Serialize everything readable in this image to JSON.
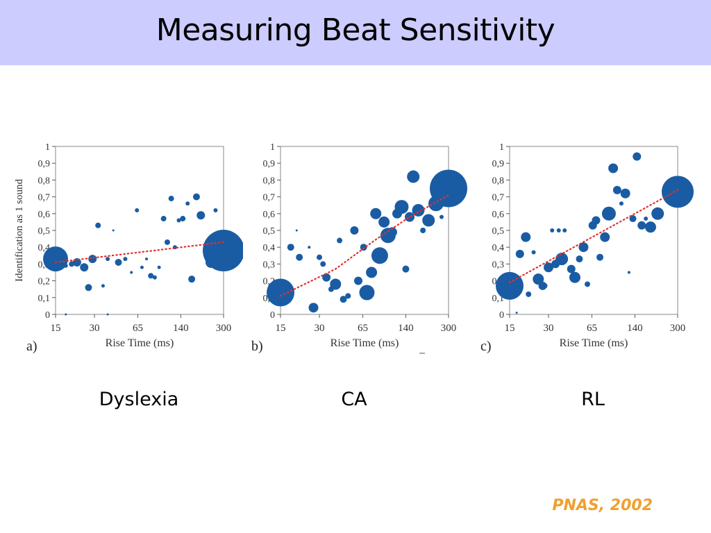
{
  "slide": {
    "title": "Measuring Beat Sensitivity",
    "citation": "PNAS, 2002",
    "colors": {
      "title_bar": "#ccccff",
      "bubble": "#1a5ca3",
      "trend": "#e03030",
      "citation": "#f0a030"
    }
  },
  "chart_data": [
    {
      "type": "scatter",
      "panel_label": "a)",
      "caption": "Dyslexia",
      "xlabel": "Rise Time (ms)",
      "ylabel": "Identification as 1 sound",
      "xticks": [
        "15",
        "30",
        "65",
        "140",
        "300"
      ],
      "yticks": [
        "0",
        "0,1",
        "0,2",
        "0,3",
        "0,4",
        "0,5",
        "0,6",
        "0,7",
        "0,8",
        "0,9",
        "1"
      ],
      "ylim": [
        0,
        1
      ],
      "x_scale": "log",
      "trend": [
        [
          15,
          0.31
        ],
        [
          300,
          0.43
        ]
      ],
      "points": [
        {
          "x": 15,
          "y": 0.33,
          "s": 18
        },
        {
          "x": 18,
          "y": 0.29,
          "s": 3
        },
        {
          "x": 20,
          "y": 0.3,
          "s": 4
        },
        {
          "x": 22,
          "y": 0.31,
          "s": 6
        },
        {
          "x": 25,
          "y": 0.28,
          "s": 6
        },
        {
          "x": 27,
          "y": 0.16,
          "s": 5
        },
        {
          "x": 29,
          "y": 0.33,
          "s": 6
        },
        {
          "x": 32,
          "y": 0.53,
          "s": 4
        },
        {
          "x": 35,
          "y": 0.17,
          "s": 2.5
        },
        {
          "x": 38,
          "y": 0.33,
          "s": 3
        },
        {
          "x": 42,
          "y": 0.5,
          "s": 1.5
        },
        {
          "x": 46,
          "y": 0.31,
          "s": 5
        },
        {
          "x": 52,
          "y": 0.33,
          "s": 3
        },
        {
          "x": 58,
          "y": 0.25,
          "s": 2
        },
        {
          "x": 64,
          "y": 0.62,
          "s": 3
        },
        {
          "x": 70,
          "y": 0.28,
          "s": 2.5
        },
        {
          "x": 76,
          "y": 0.33,
          "s": 2
        },
        {
          "x": 82,
          "y": 0.23,
          "s": 4
        },
        {
          "x": 88,
          "y": 0.22,
          "s": 3
        },
        {
          "x": 95,
          "y": 0.28,
          "s": 2.5
        },
        {
          "x": 103,
          "y": 0.57,
          "s": 4
        },
        {
          "x": 110,
          "y": 0.43,
          "s": 4
        },
        {
          "x": 118,
          "y": 0.69,
          "s": 4
        },
        {
          "x": 126,
          "y": 0.4,
          "s": 3
        },
        {
          "x": 135,
          "y": 0.56,
          "s": 3
        },
        {
          "x": 145,
          "y": 0.57,
          "s": 4
        },
        {
          "x": 158,
          "y": 0.66,
          "s": 3
        },
        {
          "x": 170,
          "y": 0.21,
          "s": 5
        },
        {
          "x": 185,
          "y": 0.7,
          "s": 5
        },
        {
          "x": 200,
          "y": 0.59,
          "s": 6
        },
        {
          "x": 240,
          "y": 0.31,
          "s": 8
        },
        {
          "x": 260,
          "y": 0.62,
          "s": 3
        },
        {
          "x": 300,
          "y": 0.38,
          "s": 30
        },
        {
          "x": 18,
          "y": 0.0,
          "s": 1.5
        },
        {
          "x": 38,
          "y": 0.0,
          "s": 1.5
        }
      ]
    },
    {
      "type": "scatter",
      "panel_label": "b)",
      "caption": "CA",
      "xlabel": "Rise Time (ms)",
      "ylabel": "",
      "xticks": [
        "15",
        "30",
        "65",
        "140",
        "300"
      ],
      "yticks": [
        "0",
        "0,1",
        "0,2",
        "0,3",
        "0,4",
        "0,5",
        "0,6",
        "0,7",
        "0,8",
        "0,9",
        "1"
      ],
      "ylim": [
        0,
        1
      ],
      "x_scale": "log",
      "trend": [
        [
          15,
          0.11
        ],
        [
          40,
          0.27
        ],
        [
          80,
          0.44
        ],
        [
          150,
          0.58
        ],
        [
          300,
          0.71
        ]
      ],
      "points": [
        {
          "x": 15,
          "y": 0.13,
          "s": 20
        },
        {
          "x": 18,
          "y": 0.4,
          "s": 5
        },
        {
          "x": 20,
          "y": 0.5,
          "s": 1.5
        },
        {
          "x": 21,
          "y": 0.34,
          "s": 5
        },
        {
          "x": 25,
          "y": 0.4,
          "s": 2
        },
        {
          "x": 27,
          "y": 0.04,
          "s": 7
        },
        {
          "x": 30,
          "y": 0.34,
          "s": 4
        },
        {
          "x": 32,
          "y": 0.3,
          "s": 4
        },
        {
          "x": 34,
          "y": 0.22,
          "s": 6
        },
        {
          "x": 37,
          "y": 0.15,
          "s": 4
        },
        {
          "x": 40,
          "y": 0.18,
          "s": 8
        },
        {
          "x": 43,
          "y": 0.44,
          "s": 4
        },
        {
          "x": 46,
          "y": 0.09,
          "s": 5
        },
        {
          "x": 50,
          "y": 0.11,
          "s": 4
        },
        {
          "x": 56,
          "y": 0.5,
          "s": 6
        },
        {
          "x": 60,
          "y": 0.2,
          "s": 6
        },
        {
          "x": 66,
          "y": 0.4,
          "s": 5
        },
        {
          "x": 70,
          "y": 0.13,
          "s": 11
        },
        {
          "x": 76,
          "y": 0.25,
          "s": 8
        },
        {
          "x": 82,
          "y": 0.6,
          "s": 8
        },
        {
          "x": 88,
          "y": 0.35,
          "s": 12
        },
        {
          "x": 95,
          "y": 0.55,
          "s": 8
        },
        {
          "x": 102,
          "y": 0.47,
          "s": 11
        },
        {
          "x": 110,
          "y": 0.49,
          "s": 7
        },
        {
          "x": 120,
          "y": 0.6,
          "s": 7
        },
        {
          "x": 130,
          "y": 0.64,
          "s": 10
        },
        {
          "x": 140,
          "y": 0.27,
          "s": 5
        },
        {
          "x": 150,
          "y": 0.58,
          "s": 7
        },
        {
          "x": 160,
          "y": 0.82,
          "s": 9
        },
        {
          "x": 175,
          "y": 0.62,
          "s": 9
        },
        {
          "x": 190,
          "y": 0.5,
          "s": 4
        },
        {
          "x": 210,
          "y": 0.56,
          "s": 9
        },
        {
          "x": 240,
          "y": 0.66,
          "s": 11
        },
        {
          "x": 265,
          "y": 0.58,
          "s": 3
        },
        {
          "x": 300,
          "y": 0.75,
          "s": 27
        }
      ]
    },
    {
      "type": "scatter",
      "panel_label": "c)",
      "caption": "RL",
      "xlabel": "Rise Time (ms)",
      "ylabel": "",
      "xticks": [
        "15",
        "30",
        "65",
        "140",
        "300"
      ],
      "yticks": [
        "0",
        "0,1",
        "0,2",
        "0,3",
        "0,4",
        "0,5",
        "0,6",
        "0,7",
        "0,8",
        "0,9",
        "1"
      ],
      "ylim": [
        0,
        1
      ],
      "x_scale": "log",
      "trend": [
        [
          15,
          0.19
        ],
        [
          300,
          0.74
        ]
      ],
      "points": [
        {
          "x": 15,
          "y": 0.17,
          "s": 20
        },
        {
          "x": 17,
          "y": 0.01,
          "s": 1.5
        },
        {
          "x": 18,
          "y": 0.36,
          "s": 6
        },
        {
          "x": 20,
          "y": 0.46,
          "s": 7
        },
        {
          "x": 21,
          "y": 0.12,
          "s": 4
        },
        {
          "x": 23,
          "y": 0.37,
          "s": 3
        },
        {
          "x": 25,
          "y": 0.21,
          "s": 8
        },
        {
          "x": 27,
          "y": 0.17,
          "s": 6
        },
        {
          "x": 28,
          "y": 0.17,
          "s": 4
        },
        {
          "x": 30,
          "y": 0.28,
          "s": 7
        },
        {
          "x": 32,
          "y": 0.5,
          "s": 3
        },
        {
          "x": 34,
          "y": 0.3,
          "s": 6
        },
        {
          "x": 36,
          "y": 0.5,
          "s": 3
        },
        {
          "x": 38,
          "y": 0.33,
          "s": 9
        },
        {
          "x": 40,
          "y": 0.5,
          "s": 3
        },
        {
          "x": 45,
          "y": 0.27,
          "s": 6
        },
        {
          "x": 48,
          "y": 0.22,
          "s": 8
        },
        {
          "x": 52,
          "y": 0.33,
          "s": 5
        },
        {
          "x": 56,
          "y": 0.4,
          "s": 7
        },
        {
          "x": 60,
          "y": 0.18,
          "s": 4
        },
        {
          "x": 66,
          "y": 0.53,
          "s": 6
        },
        {
          "x": 70,
          "y": 0.56,
          "s": 6
        },
        {
          "x": 75,
          "y": 0.34,
          "s": 5
        },
        {
          "x": 82,
          "y": 0.46,
          "s": 7
        },
        {
          "x": 88,
          "y": 0.6,
          "s": 10
        },
        {
          "x": 95,
          "y": 0.87,
          "s": 7
        },
        {
          "x": 102,
          "y": 0.74,
          "s": 6
        },
        {
          "x": 110,
          "y": 0.66,
          "s": 3
        },
        {
          "x": 118,
          "y": 0.72,
          "s": 7
        },
        {
          "x": 126,
          "y": 0.25,
          "s": 2
        },
        {
          "x": 135,
          "y": 0.57,
          "s": 5
        },
        {
          "x": 145,
          "y": 0.94,
          "s": 6
        },
        {
          "x": 158,
          "y": 0.53,
          "s": 6
        },
        {
          "x": 170,
          "y": 0.57,
          "s": 3
        },
        {
          "x": 185,
          "y": 0.52,
          "s": 8
        },
        {
          "x": 210,
          "y": 0.6,
          "s": 9
        },
        {
          "x": 300,
          "y": 0.73,
          "s": 23
        }
      ]
    }
  ]
}
